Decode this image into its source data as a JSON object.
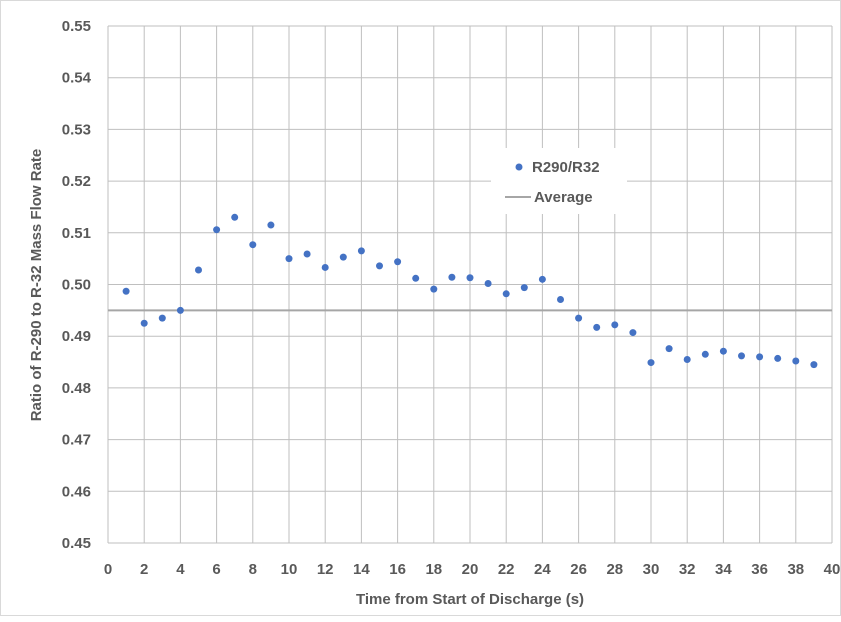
{
  "chart_data": {
    "type": "scatter",
    "title": "",
    "xlabel": "Time from Start of Discharge (s)",
    "ylabel": "Ratio of R-290 to R-32 Mass Flow Rate",
    "xlim": [
      0,
      40
    ],
    "ylim": [
      0.45,
      0.55
    ],
    "x_ticks": [
      "0",
      "2",
      "4",
      "6",
      "8",
      "10",
      "12",
      "14",
      "16",
      "18",
      "20",
      "22",
      "24",
      "26",
      "28",
      "30",
      "32",
      "34",
      "36",
      "38",
      "40"
    ],
    "y_ticks": [
      "0.45",
      "0.46",
      "0.47",
      "0.48",
      "0.49",
      "0.50",
      "0.51",
      "0.52",
      "0.53",
      "0.54",
      "0.55"
    ],
    "grid": true,
    "legend_position": "right-center",
    "series": [
      {
        "name": "R290/R32",
        "kind": "scatter",
        "color": "#4472c4",
        "x": [
          1,
          2,
          3,
          4,
          5,
          6,
          7,
          8,
          9,
          10,
          11,
          12,
          13,
          14,
          15,
          16,
          17,
          18,
          19,
          20,
          21,
          22,
          23,
          24,
          25,
          26,
          27,
          28,
          29,
          30,
          31,
          32,
          33,
          34,
          35,
          36,
          37,
          38,
          39
        ],
        "y": [
          0.4987,
          0.4925,
          0.4935,
          0.495,
          0.5028,
          0.5106,
          0.513,
          0.5077,
          0.5115,
          0.505,
          0.5059,
          0.5033,
          0.5053,
          0.5065,
          0.5036,
          0.5044,
          0.5012,
          0.4991,
          0.5014,
          0.5013,
          0.5002,
          0.4982,
          0.4994,
          0.501,
          0.4971,
          0.4935,
          0.4917,
          0.4922,
          0.4907,
          0.4849,
          0.4876,
          0.4855,
          0.4865,
          0.4871,
          0.4862,
          0.486,
          0.4857,
          0.4852,
          0.4845
        ]
      },
      {
        "name": "Average",
        "kind": "line",
        "color": "#a6a6a6",
        "y": 0.495
      }
    ]
  }
}
